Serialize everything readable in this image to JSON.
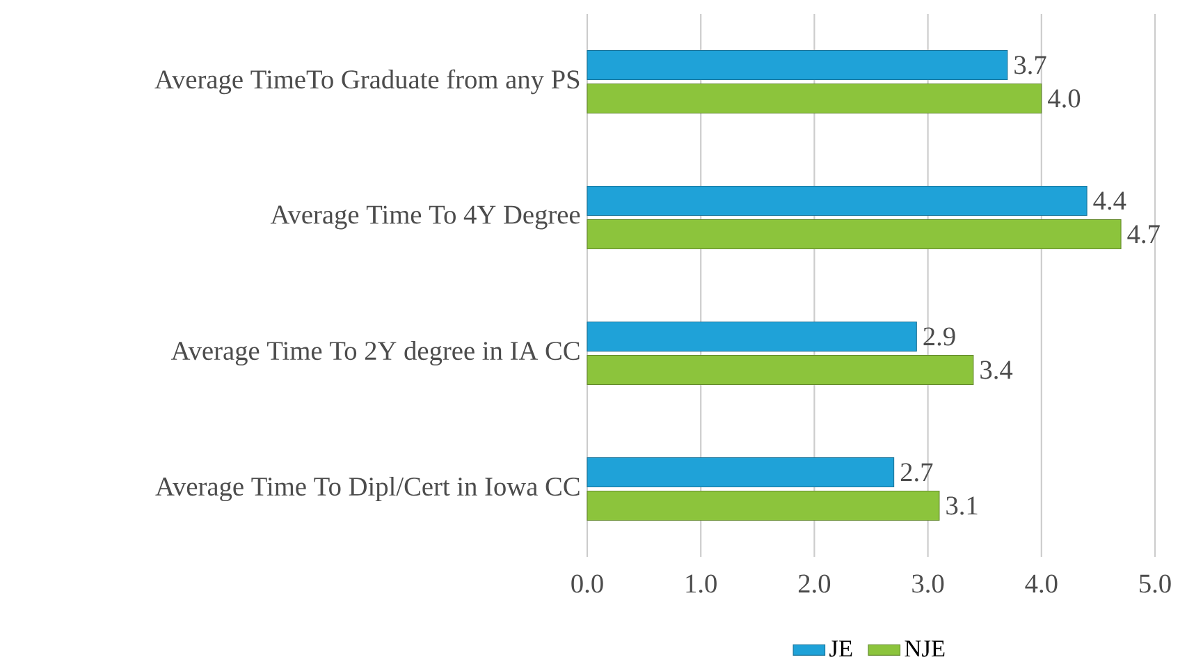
{
  "chart_data": {
    "type": "bar",
    "orientation": "horizontal",
    "categories": [
      "Average TimeTo Graduate from any PS",
      "Average Time To 4Y Degree",
      "Average Time To 2Y degree in IA CC",
      "Average Time To Dipl/Cert in Iowa CC"
    ],
    "series": [
      {
        "name": "JE",
        "color": "#1fa2d8",
        "values": [
          3.7,
          4.4,
          2.9,
          2.7
        ],
        "value_labels": [
          "3.7",
          "4.4",
          "2.9",
          "2.7"
        ]
      },
      {
        "name": "NJE",
        "color": "#8cc43c",
        "values": [
          4.0,
          4.7,
          3.4,
          3.1
        ],
        "value_labels": [
          "4.0",
          "4.7",
          "3.4",
          "3.1"
        ]
      }
    ],
    "xlim": [
      0,
      5
    ],
    "xticks": [
      {
        "value": 0,
        "label": "0.0"
      },
      {
        "value": 1,
        "label": "1.0"
      },
      {
        "value": 2,
        "label": "2.0"
      },
      {
        "value": 3,
        "label": "3.0"
      },
      {
        "value": 4,
        "label": "4.0"
      },
      {
        "value": 5,
        "label": "5.0"
      }
    ],
    "grid": "x",
    "legend": "bottom"
  }
}
